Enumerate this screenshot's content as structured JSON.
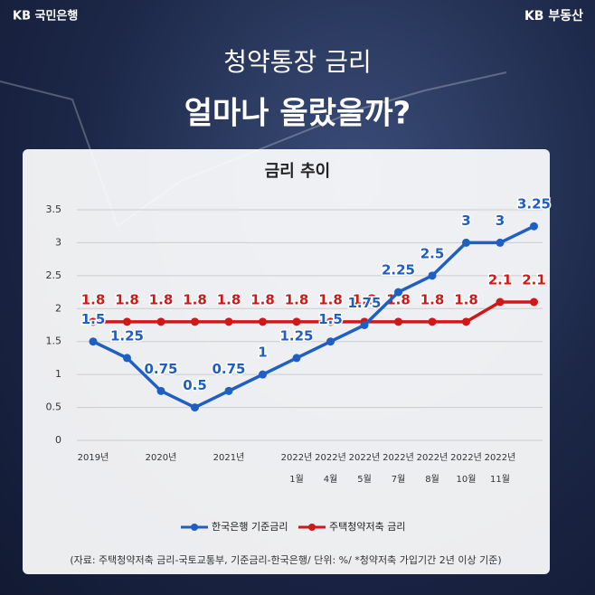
{
  "header": {
    "brand_left": "KB 국민은행",
    "brand_right": "KB 부동산",
    "title_line1": "청약통장 금리",
    "title_line2": "얼마나 올랐을까?"
  },
  "chart_data": {
    "type": "line",
    "title": "금리 추이",
    "categories": [
      "2019년",
      null,
      "2020년",
      null,
      "2021년",
      null,
      "2022년 1월",
      "2022년 4월",
      "2022년 5월",
      "2022년 7월",
      "2022년 8월",
      "2022년 10월",
      "2022년 11월",
      null
    ],
    "series": [
      {
        "name": "한국은행 기준금리",
        "color": "#1f5fc4",
        "values": [
          1.5,
          1.25,
          0.75,
          0.5,
          0.75,
          1,
          1.25,
          1.5,
          1.75,
          2.25,
          2.5,
          3,
          3,
          3.25
        ]
      },
      {
        "name": "주택청약저축 금리",
        "color": "#d01818",
        "values": [
          1.8,
          1.8,
          1.8,
          1.8,
          1.8,
          1.8,
          1.8,
          1.8,
          1.8,
          1.8,
          1.8,
          1.8,
          2.1,
          2.1
        ]
      }
    ],
    "ylim": [
      0,
      3.5
    ],
    "yticks": [
      0,
      0.5,
      1,
      1.5,
      2,
      2.5,
      3,
      3.5
    ],
    "grid": true,
    "legend": "bottom",
    "note": "(자료: 주택청약저축 금리-국토교통부, 기준금리-한국은행/ 단위: %/ *청약저축 가입기간 2년 이상 기준)"
  }
}
